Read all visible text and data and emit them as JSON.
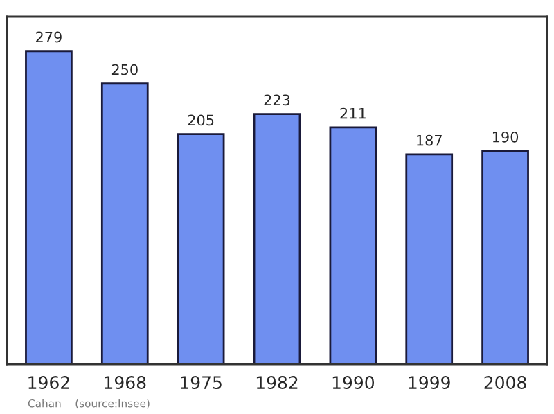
{
  "chart_data": {
    "type": "bar",
    "categories": [
      "1962",
      "1968",
      "1975",
      "1982",
      "1990",
      "1999",
      "2008"
    ],
    "values": [
      279,
      250,
      205,
      223,
      211,
      187,
      190
    ],
    "color": "#6f8ff0",
    "data_labels": true,
    "grid": false,
    "annotations": [
      "Cahan    (source:Insee)"
    ]
  }
}
